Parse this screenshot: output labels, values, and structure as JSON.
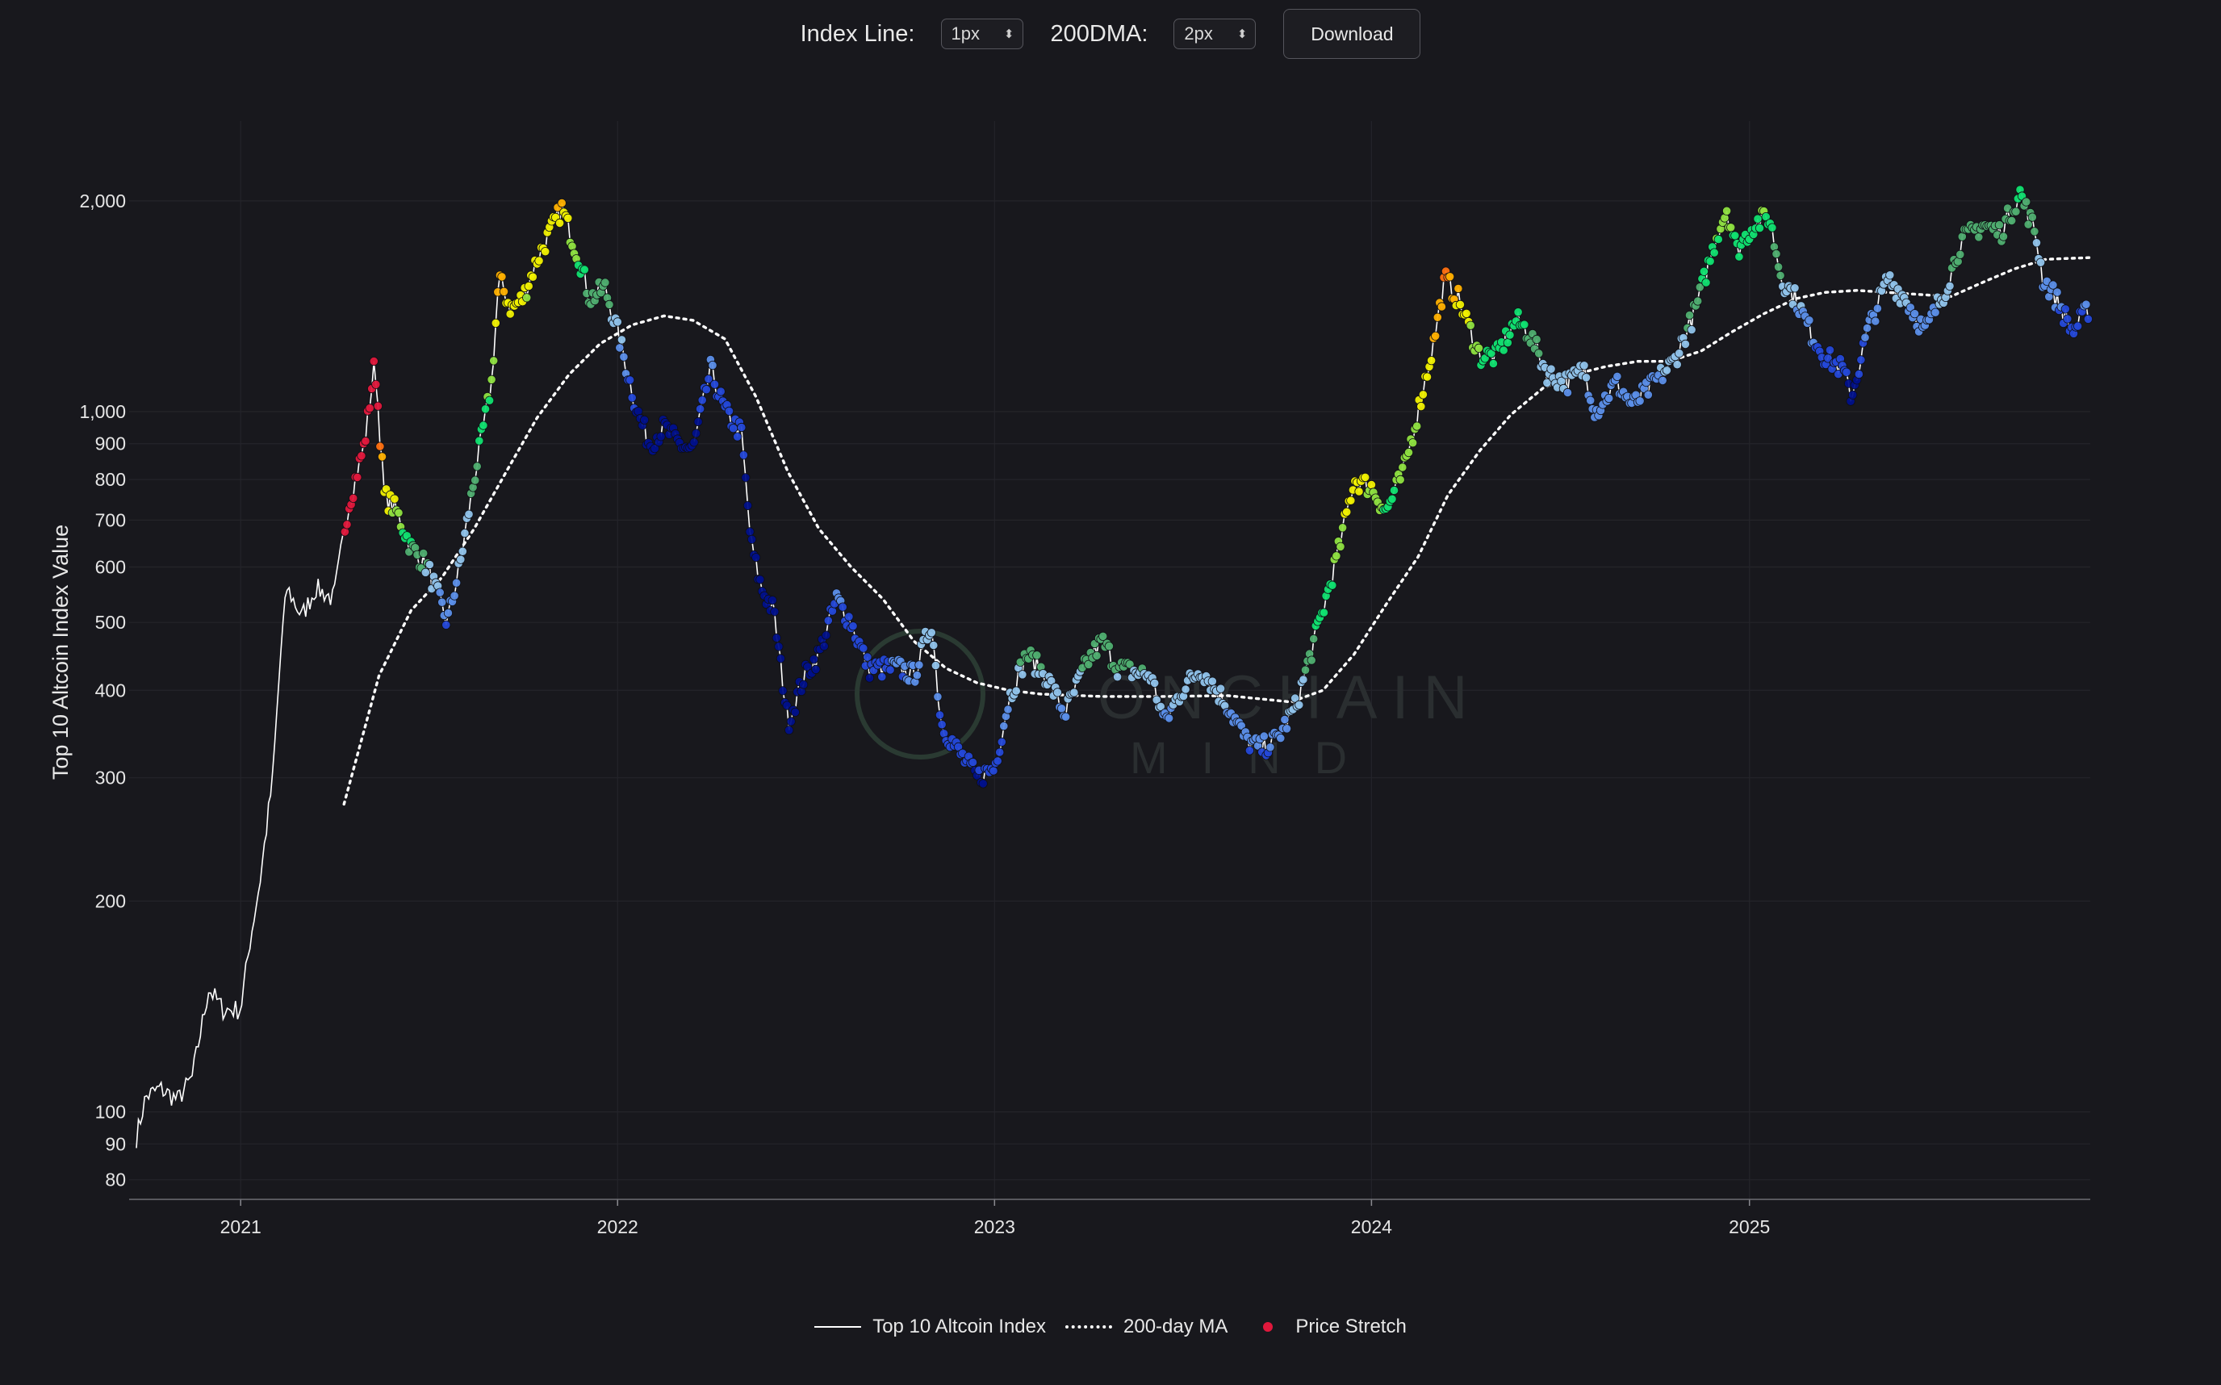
{
  "controls": {
    "index_line_label": "Index Line:",
    "index_line_value": "1px",
    "dma_label": "200DMA:",
    "dma_value": "2px",
    "download_label": "Download"
  },
  "watermark": {
    "line1": "ONCHAIN",
    "line2": "MIND"
  },
  "chart_data": {
    "type": "line",
    "title": "",
    "xlabel": "",
    "ylabel": "Top 10 Altcoin Index Value",
    "y_scale": "log",
    "ylim": [
      75,
      2600
    ],
    "xlim": [
      "2020-09-15",
      "2025-11-27"
    ],
    "y_ticks": [
      {
        "value": 80,
        "label": "80"
      },
      {
        "value": 90,
        "label": "90"
      },
      {
        "value": 100,
        "label": "100"
      },
      {
        "value": 200,
        "label": "200"
      },
      {
        "value": 300,
        "label": "300"
      },
      {
        "value": 400,
        "label": "400"
      },
      {
        "value": 500,
        "label": "500"
      },
      {
        "value": 600,
        "label": "600"
      },
      {
        "value": 700,
        "label": "700"
      },
      {
        "value": 800,
        "label": "800"
      },
      {
        "value": 900,
        "label": "900"
      },
      {
        "value": 1000,
        "label": "1,000"
      },
      {
        "value": 2000,
        "label": "2,000"
      }
    ],
    "x_ticks": [
      {
        "value": "2021-01-01",
        "label": "2021"
      },
      {
        "value": "2022-01-01",
        "label": "2022"
      },
      {
        "value": "2023-01-01",
        "label": "2023"
      },
      {
        "value": "2024-01-01",
        "label": "2024"
      },
      {
        "value": "2025-01-01",
        "label": "2025"
      }
    ],
    "grid": true,
    "legend_position": "bottom-center",
    "series": [
      {
        "name": "Top 10 Altcoin Index",
        "style": "solid",
        "color": "#ffffff",
        "points": [
          [
            "2020-09-22",
            92
          ],
          [
            "2020-10-01",
            105
          ],
          [
            "2020-10-15",
            108
          ],
          [
            "2020-11-01",
            104
          ],
          [
            "2020-11-15",
            112
          ],
          [
            "2020-12-01",
            150
          ],
          [
            "2020-12-15",
            140
          ],
          [
            "2021-01-01",
            140
          ],
          [
            "2021-01-10",
            175
          ],
          [
            "2021-01-20",
            215
          ],
          [
            "2021-02-01",
            300
          ],
          [
            "2021-02-10",
            480
          ],
          [
            "2021-02-15",
            560
          ],
          [
            "2021-03-01",
            510
          ],
          [
            "2021-03-15",
            560
          ],
          [
            "2021-04-01",
            540
          ],
          [
            "2021-04-15",
            730
          ],
          [
            "2021-05-01",
            900
          ],
          [
            "2021-05-11",
            1180
          ],
          [
            "2021-05-20",
            760
          ],
          [
            "2021-06-01",
            720
          ],
          [
            "2021-06-15",
            640
          ],
          [
            "2021-07-01",
            600
          ],
          [
            "2021-07-20",
            500
          ],
          [
            "2021-08-01",
            600
          ],
          [
            "2021-08-15",
            800
          ],
          [
            "2021-09-01",
            1100
          ],
          [
            "2021-09-08",
            1550
          ],
          [
            "2021-09-20",
            1400
          ],
          [
            "2021-10-01",
            1450
          ],
          [
            "2021-10-15",
            1650
          ],
          [
            "2021-11-08",
            1950
          ],
          [
            "2021-11-25",
            1650
          ],
          [
            "2021-12-05",
            1450
          ],
          [
            "2021-12-20",
            1500
          ],
          [
            "2022-01-01",
            1300
          ],
          [
            "2022-01-20",
            1000
          ],
          [
            "2022-02-01",
            900
          ],
          [
            "2022-02-15",
            950
          ],
          [
            "2022-03-01",
            900
          ],
          [
            "2022-03-15",
            880
          ],
          [
            "2022-04-01",
            1150
          ],
          [
            "2022-04-15",
            1000
          ],
          [
            "2022-05-01",
            930
          ],
          [
            "2022-05-10",
            650
          ],
          [
            "2022-05-20",
            560
          ],
          [
            "2022-06-01",
            520
          ],
          [
            "2022-06-15",
            360
          ],
          [
            "2022-07-01",
            420
          ],
          [
            "2022-07-15",
            450
          ],
          [
            "2022-08-01",
            540
          ],
          [
            "2022-08-15",
            500
          ],
          [
            "2022-09-01",
            430
          ],
          [
            "2022-09-15",
            430
          ],
          [
            "2022-10-01",
            430
          ],
          [
            "2022-10-15",
            420
          ],
          [
            "2022-11-01",
            500
          ],
          [
            "2022-11-10",
            360
          ],
          [
            "2022-11-25",
            330
          ],
          [
            "2022-12-15",
            300
          ],
          [
            "2023-01-01",
            310
          ],
          [
            "2023-01-15",
            390
          ],
          [
            "2023-02-01",
            450
          ],
          [
            "2023-02-20",
            420
          ],
          [
            "2023-03-10",
            370
          ],
          [
            "2023-04-01",
            440
          ],
          [
            "2023-04-15",
            470
          ],
          [
            "2023-05-01",
            430
          ],
          [
            "2023-06-01",
            420
          ],
          [
            "2023-06-15",
            360
          ],
          [
            "2023-07-01",
            400
          ],
          [
            "2023-07-20",
            430
          ],
          [
            "2023-08-15",
            380
          ],
          [
            "2023-09-01",
            340
          ],
          [
            "2023-09-15",
            330
          ],
          [
            "2023-10-01",
            340
          ],
          [
            "2023-10-20",
            380
          ],
          [
            "2023-11-01",
            440
          ],
          [
            "2023-11-15",
            520
          ],
          [
            "2023-12-01",
            640
          ],
          [
            "2023-12-15",
            800
          ],
          [
            "2024-01-01",
            780
          ],
          [
            "2024-01-15",
            720
          ],
          [
            "2024-02-01",
            820
          ],
          [
            "2024-02-15",
            1000
          ],
          [
            "2024-03-01",
            1250
          ],
          [
            "2024-03-12",
            1550
          ],
          [
            "2024-03-25",
            1450
          ],
          [
            "2024-04-15",
            1200
          ],
          [
            "2024-05-01",
            1200
          ],
          [
            "2024-05-20",
            1350
          ],
          [
            "2024-06-01",
            1300
          ],
          [
            "2024-06-20",
            1130
          ],
          [
            "2024-07-10",
            1100
          ],
          [
            "2024-07-25",
            1150
          ],
          [
            "2024-08-05",
            1000
          ],
          [
            "2024-08-25",
            1100
          ],
          [
            "2024-09-10",
            1020
          ],
          [
            "2024-10-01",
            1100
          ],
          [
            "2024-10-20",
            1180
          ],
          [
            "2024-11-10",
            1400
          ],
          [
            "2024-12-01",
            1800
          ],
          [
            "2024-12-10",
            1950
          ],
          [
            "2024-12-20",
            1700
          ],
          [
            "2025-01-05",
            1850
          ],
          [
            "2025-01-20",
            1900
          ],
          [
            "2025-02-01",
            1550
          ],
          [
            "2025-02-15",
            1450
          ],
          [
            "2025-03-01",
            1300
          ],
          [
            "2025-03-15",
            1200
          ],
          [
            "2025-04-01",
            1150
          ],
          [
            "2025-04-10",
            1050
          ],
          [
            "2025-04-25",
            1300
          ],
          [
            "2025-05-15",
            1550
          ],
          [
            "2025-06-01",
            1450
          ],
          [
            "2025-06-20",
            1300
          ],
          [
            "2025-07-10",
            1500
          ],
          [
            "2025-07-25",
            1750
          ],
          [
            "2025-08-15",
            1850
          ],
          [
            "2025-09-01",
            1800
          ],
          [
            "2025-09-20",
            2050
          ],
          [
            "2025-10-05",
            1800
          ],
          [
            "2025-10-12",
            1550
          ],
          [
            "2025-10-25",
            1450
          ],
          [
            "2025-11-10",
            1300
          ],
          [
            "2025-11-25",
            1400
          ]
        ]
      },
      {
        "name": "200-day MA",
        "style": "dotted",
        "color": "#ffffff",
        "points": [
          [
            "2021-04-11",
            275
          ],
          [
            "2021-05-15",
            420
          ],
          [
            "2021-06-15",
            520
          ],
          [
            "2021-07-15",
            580
          ],
          [
            "2021-08-15",
            680
          ],
          [
            "2021-09-15",
            820
          ],
          [
            "2021-10-15",
            980
          ],
          [
            "2021-11-15",
            1130
          ],
          [
            "2021-12-15",
            1250
          ],
          [
            "2022-01-15",
            1330
          ],
          [
            "2022-02-15",
            1370
          ],
          [
            "2022-03-15",
            1350
          ],
          [
            "2022-04-15",
            1270
          ],
          [
            "2022-05-15",
            1050
          ],
          [
            "2022-06-15",
            820
          ],
          [
            "2022-07-15",
            680
          ],
          [
            "2022-08-15",
            600
          ],
          [
            "2022-09-15",
            540
          ],
          [
            "2022-10-15",
            470
          ],
          [
            "2022-11-15",
            430
          ],
          [
            "2022-12-15",
            410
          ],
          [
            "2023-01-15",
            400
          ],
          [
            "2023-02-15",
            395
          ],
          [
            "2023-04-15",
            392
          ],
          [
            "2023-06-15",
            392
          ],
          [
            "2023-08-15",
            393
          ],
          [
            "2023-10-15",
            385
          ],
          [
            "2023-11-15",
            400
          ],
          [
            "2023-12-15",
            450
          ],
          [
            "2024-01-15",
            530
          ],
          [
            "2024-02-15",
            620
          ],
          [
            "2024-03-15",
            760
          ],
          [
            "2024-04-15",
            880
          ],
          [
            "2024-05-15",
            990
          ],
          [
            "2024-06-15",
            1080
          ],
          [
            "2024-07-15",
            1130
          ],
          [
            "2024-08-15",
            1160
          ],
          [
            "2024-09-15",
            1180
          ],
          [
            "2024-10-15",
            1180
          ],
          [
            "2024-11-15",
            1220
          ],
          [
            "2024-12-15",
            1300
          ],
          [
            "2025-01-15",
            1380
          ],
          [
            "2025-02-15",
            1450
          ],
          [
            "2025-03-15",
            1480
          ],
          [
            "2025-04-15",
            1490
          ],
          [
            "2025-05-15",
            1480
          ],
          [
            "2025-06-15",
            1470
          ],
          [
            "2025-07-15",
            1460
          ],
          [
            "2025-08-15",
            1530
          ],
          [
            "2025-09-15",
            1600
          ],
          [
            "2025-10-15",
            1650
          ],
          [
            "2025-11-27",
            1660
          ]
        ]
      },
      {
        "name": "Price Stretch",
        "style": "points",
        "start": "2021-04-11",
        "colormap": [
          "#00108a",
          "#2448d8",
          "#5b8ee8",
          "#8fc2ea",
          "#4fae70",
          "#10e070",
          "#8ee040",
          "#f0f000",
          "#ffb000",
          "#ff7010",
          "#e0183c"
        ]
      }
    ]
  },
  "legend": {
    "items": [
      {
        "label": "Top 10 Altcoin Index"
      },
      {
        "label": "200-day MA"
      },
      {
        "label": "Price Stretch",
        "color": "#e0183c"
      }
    ]
  }
}
